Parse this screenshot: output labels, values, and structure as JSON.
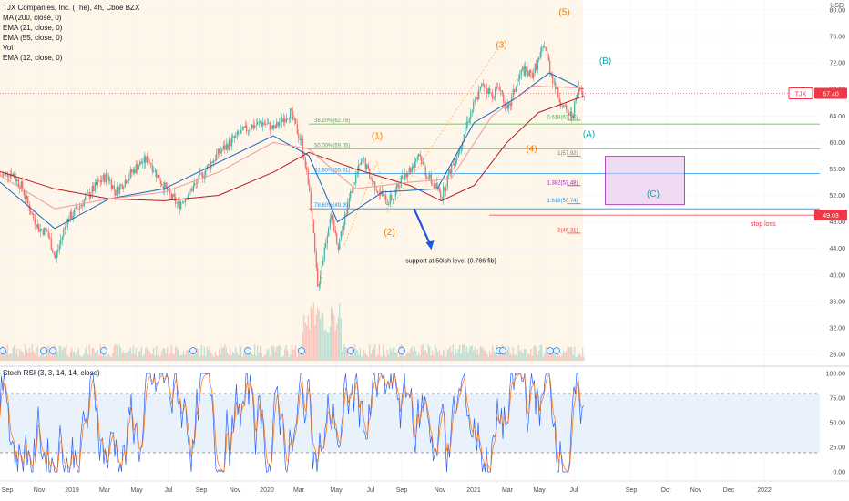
{
  "header": {
    "symbol_line": "TJX Companies, Inc. (The), 4h, Cboe BZX",
    "indicators": [
      "MA (200, close, 0)",
      "EMA (21, close, 0)",
      "EMA (55, close, 0)",
      "Vol",
      "EMA (12, close, 0)"
    ],
    "currency": "USD"
  },
  "stoch": {
    "label": "Stoch RSI (3, 3, 14, 14, close)",
    "ticks": [
      "100.00",
      "75.00",
      "50.00",
      "25.00",
      "0.00"
    ]
  },
  "colors": {
    "candle_up": "#26a69a",
    "candle_down": "#ef5350",
    "ma200": "#b71c1c",
    "ema21": "#1565c0",
    "ema55": "#ef9a9a",
    "wave_orange": "#f57c00",
    "wave_teal": "#00acc1",
    "price_label_bg": "#f23645",
    "target_box": "#e1bee7",
    "arrow": "#1e53e5"
  },
  "chart_data": {
    "type": "candlestick",
    "x_ticks": [
      "Sep",
      "Nov",
      "2019",
      "Mar",
      "May",
      "Jul",
      "Sep",
      "Nov",
      "2020",
      "Mar",
      "May",
      "Jul",
      "Sep",
      "Nov",
      "2021",
      "Mar",
      "May",
      "Jul",
      "Sep",
      "Oct",
      "Nov",
      "Dec",
      "2022"
    ],
    "y_ticks": [
      "80.00",
      "76.00",
      "72.00",
      "68.00",
      "64.00",
      "60.00",
      "56.00",
      "52.00",
      "48.00",
      "44.00",
      "40.00",
      "36.00",
      "32.00",
      "28.00"
    ],
    "ylim": [
      26.5,
      81.5
    ],
    "price_path": [
      [
        0,
        55.0
      ],
      [
        8,
        55.5
      ],
      [
        16,
        53.0
      ],
      [
        22,
        49.5
      ],
      [
        28,
        47.0
      ],
      [
        34,
        46.5
      ],
      [
        40,
        42.5
      ],
      [
        48,
        48.0
      ],
      [
        56,
        50.0
      ],
      [
        64,
        52.0
      ],
      [
        72,
        54.0
      ],
      [
        78,
        55.0
      ],
      [
        84,
        52.5
      ],
      [
        92,
        54.5
      ],
      [
        100,
        56.5
      ],
      [
        108,
        57.5
      ],
      [
        116,
        54.5
      ],
      [
        124,
        52.0
      ],
      [
        130,
        50.5
      ],
      [
        136,
        52.0
      ],
      [
        144,
        54.0
      ],
      [
        152,
        56.5
      ],
      [
        160,
        58.5
      ],
      [
        168,
        60.0
      ],
      [
        176,
        61.5
      ],
      [
        184,
        62.5
      ],
      [
        192,
        63.0
      ],
      [
        200,
        62.0
      ],
      [
        206,
        63.5
      ],
      [
        212,
        64.5
      ],
      [
        220,
        60.0
      ],
      [
        226,
        53.0
      ],
      [
        232,
        38.0
      ],
      [
        237,
        44.0
      ],
      [
        241,
        49.0
      ],
      [
        247,
        44.5
      ],
      [
        253,
        50.0
      ],
      [
        260,
        55.0
      ],
      [
        265,
        57.5
      ],
      [
        271,
        54.5
      ],
      [
        277,
        52.5
      ],
      [
        283,
        51.0
      ],
      [
        288,
        52.0
      ],
      [
        294,
        55.0
      ],
      [
        300,
        56.0
      ],
      [
        306,
        58.5
      ],
      [
        311,
        55.5
      ],
      [
        317,
        53.5
      ],
      [
        323,
        52.0
      ],
      [
        329,
        56.0
      ],
      [
        335,
        58.5
      ],
      [
        341,
        63.0
      ],
      [
        347,
        66.0
      ],
      [
        353,
        69.0
      ],
      [
        359,
        67.0
      ],
      [
        365,
        68.5
      ],
      [
        371,
        64.5
      ],
      [
        376,
        68.0
      ],
      [
        382,
        71.0
      ],
      [
        388,
        70.0
      ],
      [
        394,
        72.5
      ],
      [
        398,
        74.8
      ],
      [
        402,
        71.0
      ],
      [
        408,
        67.0
      ],
      [
        414,
        64.5
      ],
      [
        418,
        64.0
      ],
      [
        423,
        68.0
      ],
      [
        427,
        67.5
      ]
    ],
    "overlays": {
      "MA (200, close, 0)": [
        [
          0,
          55.6
        ],
        [
          40,
          53.0
        ],
        [
          80,
          51.5
        ],
        [
          120,
          51.2
        ],
        [
          160,
          52.0
        ],
        [
          200,
          55.5
        ],
        [
          226,
          58.5
        ],
        [
          260,
          56.0
        ],
        [
          300,
          53.5
        ],
        [
          323,
          51.2
        ],
        [
          347,
          53.5
        ],
        [
          371,
          60.0
        ],
        [
          394,
          64.5
        ],
        [
          427,
          67.0
        ]
      ],
      "EMA (21, close, 0)": [
        [
          0,
          54.0
        ],
        [
          40,
          47.0
        ],
        [
          80,
          51.5
        ],
        [
          120,
          53.0
        ],
        [
          160,
          57.0
        ],
        [
          200,
          61.0
        ],
        [
          226,
          58.0
        ],
        [
          247,
          48.0
        ],
        [
          280,
          52.5
        ],
        [
          320,
          53.0
        ],
        [
          347,
          63.0
        ],
        [
          376,
          66.5
        ],
        [
          402,
          70.5
        ],
        [
          427,
          68.0
        ]
      ],
      "EMA (55, close, 0)": [
        [
          0,
          55.0
        ],
        [
          40,
          50.0
        ],
        [
          80,
          51.5
        ],
        [
          120,
          52.5
        ],
        [
          160,
          55.5
        ],
        [
          200,
          60.0
        ],
        [
          226,
          59.0
        ],
        [
          260,
          53.0
        ],
        [
          300,
          54.0
        ],
        [
          330,
          54.5
        ],
        [
          360,
          64.0
        ],
        [
          390,
          68.5
        ],
        [
          427,
          68.2
        ]
      ]
    },
    "current_price": {
      "ticker": "TJX",
      "value": "67.40"
    },
    "stop_loss": {
      "value": "49.03",
      "label": "stop loss"
    },
    "fib_levels": [
      {
        "label": "38.20%(62.78)",
        "price": 62.78
      },
      {
        "label": "50.00%(59.05)",
        "price": 59.05
      },
      {
        "label": "61.80%(55.31)",
        "price": 55.31
      },
      {
        "label": "78.60%(49.99)",
        "price": 49.99
      }
    ],
    "fib_ext": [
      {
        "label": "0.618(63.36)",
        "price": 63.36
      },
      {
        "label": "1(57.92)",
        "price": 57.92
      },
      {
        "label": "1.382(53.48)",
        "price": 53.48
      },
      {
        "label": "1.618(50.74)",
        "price": 50.74
      },
      {
        "label": "2(46.31)",
        "price": 46.31
      }
    ],
    "wave_labels": [
      {
        "text": "(1)",
        "bar": 276,
        "price": 60.5,
        "color": "orange"
      },
      {
        "text": "(2)",
        "bar": 285,
        "price": 46.0,
        "color": "orange"
      },
      {
        "text": "(3)",
        "bar": 367,
        "price": 74.3,
        "color": "orange"
      },
      {
        "text": "(4)",
        "bar": 389,
        "price": 58.6,
        "color": "orange"
      },
      {
        "text": "(5)",
        "bar": 413,
        "price": 79.2,
        "color": "orange"
      },
      {
        "text": "(A)",
        "bar": 431,
        "price": 60.8,
        "color": "teal"
      },
      {
        "text": "(B)",
        "bar": 443,
        "price": 71.9,
        "color": "teal"
      },
      {
        "text": "(C)",
        "bar": 478,
        "price": 51.8,
        "color": "teal"
      }
    ],
    "annotation": "support at 50ish level (0.786 fib)",
    "stoch_ylim": [
      0,
      100
    ]
  }
}
